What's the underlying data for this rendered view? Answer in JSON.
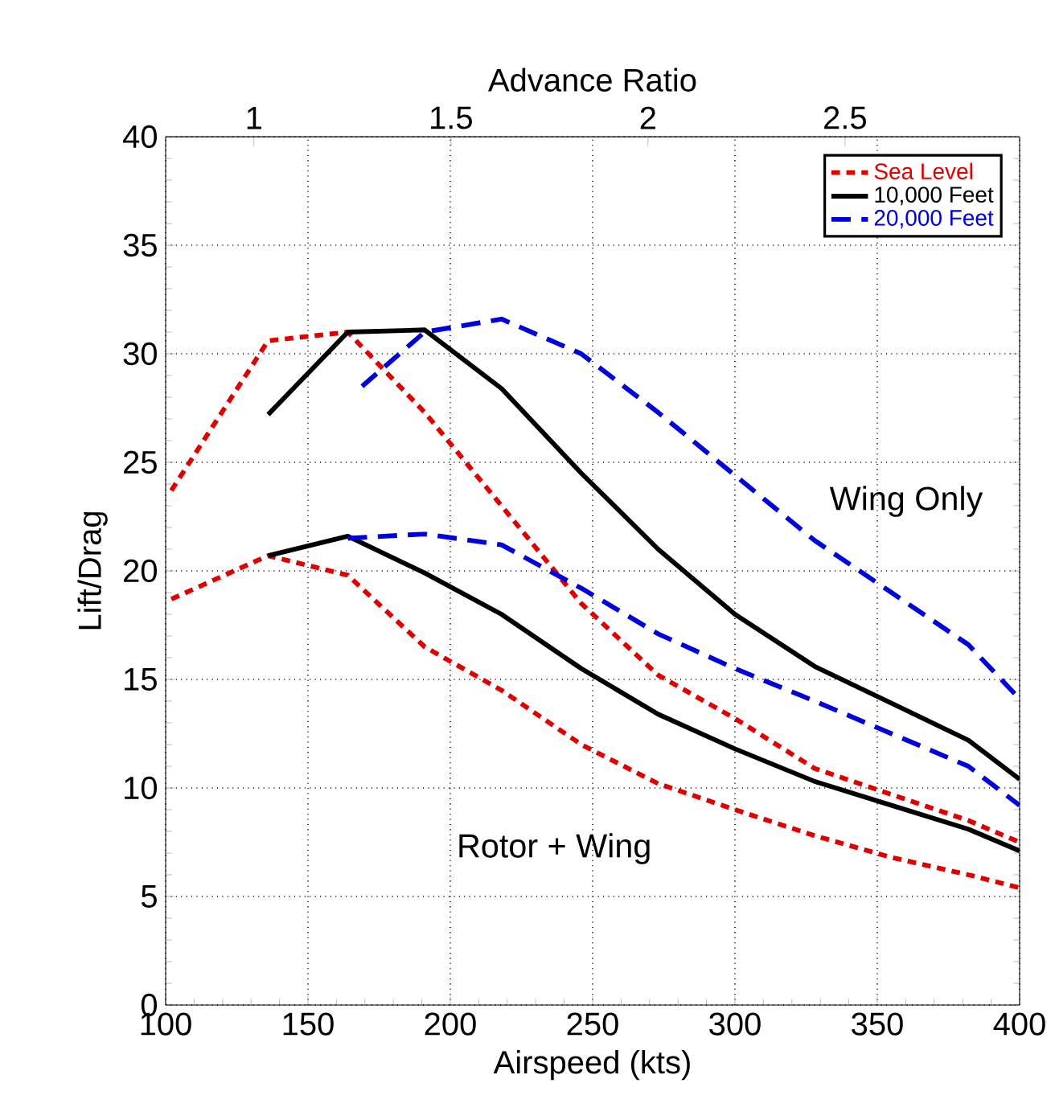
{
  "chart_data": {
    "type": "line",
    "xlabel": "Airspeed (kts)",
    "ylabel": "Lift/Drag",
    "x2label": "Advance Ratio",
    "xlim": [
      100,
      400
    ],
    "xticks": [
      100,
      150,
      200,
      250,
      300,
      350,
      400
    ],
    "ylim": [
      0,
      40
    ],
    "yticks": [
      0,
      5,
      10,
      15,
      20,
      25,
      30,
      35,
      40
    ],
    "x2lim": [
      0.776,
      2.943
    ],
    "x2ticks": [
      1,
      1.5,
      2,
      2.5
    ],
    "grid": true,
    "legend": "top right",
    "annotations": [
      "Wing Only",
      "Rotor + Wing"
    ],
    "series": [
      {
        "name": "Sea Level",
        "color": "#e00000",
        "line_style": "dotted",
        "x": [
          102,
          136,
          164,
          191,
          218,
          246,
          273,
          300,
          328,
          355,
          382,
          400
        ],
        "values": [
          23.7,
          30.6,
          31.0,
          27.3,
          23.0,
          18.5,
          15.2,
          13.2,
          10.9,
          9.7,
          8.5,
          7.5
        ]
      },
      {
        "name": "10,000 Feet",
        "color": "#000000",
        "line_style": "solid",
        "x": [
          136,
          164,
          191,
          218,
          246,
          273,
          300,
          328,
          355,
          382,
          400
        ],
        "values": [
          27.2,
          31.0,
          31.1,
          28.4,
          24.5,
          21.0,
          18.0,
          15.6,
          13.9,
          12.2,
          10.4
        ]
      },
      {
        "name": "20,000 Feet",
        "color": "#0000dd",
        "line_style": "dashed",
        "x": [
          169,
          191,
          218,
          246,
          273,
          300,
          328,
          355,
          382,
          400
        ],
        "values": [
          28.5,
          31.0,
          31.6,
          30.0,
          27.3,
          24.4,
          21.4,
          19.0,
          16.6,
          14.1
        ]
      },
      {
        "color": "#e00000",
        "line_style": "dotted",
        "x": [
          102,
          136,
          164,
          191,
          218,
          246,
          273,
          300,
          328,
          355,
          382,
          400
        ],
        "values": [
          18.7,
          20.7,
          19.8,
          16.5,
          14.5,
          12.0,
          10.2,
          9.0,
          7.8,
          6.8,
          6.0,
          5.4
        ]
      },
      {
        "color": "#000000",
        "line_style": "solid",
        "x": [
          136,
          164,
          191,
          218,
          246,
          273,
          300,
          328,
          355,
          382,
          400
        ],
        "values": [
          20.7,
          21.6,
          19.9,
          18.0,
          15.5,
          13.4,
          11.8,
          10.3,
          9.2,
          8.1,
          7.1
        ]
      },
      {
        "color": "#0000dd",
        "line_style": "dashed",
        "x": [
          164,
          191,
          218,
          246,
          273,
          300,
          328,
          355,
          382,
          400
        ],
        "values": [
          21.5,
          21.7,
          21.2,
          19.2,
          17.1,
          15.5,
          14.0,
          12.5,
          11.0,
          9.2
        ]
      }
    ]
  }
}
